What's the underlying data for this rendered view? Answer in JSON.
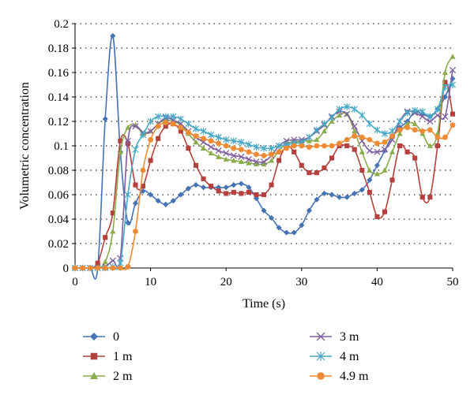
{
  "chart_data": {
    "type": "line",
    "title": "",
    "xlabel": "Time (s)",
    "ylabel": "Volumetric concentration",
    "xlim": [
      0,
      50
    ],
    "ylim": [
      0,
      0.2
    ],
    "xticks": [
      "0",
      "10",
      "20",
      "30",
      "40",
      "50"
    ],
    "yticks": [
      "0",
      "0.02",
      "0.04",
      "0.06",
      "0.08",
      "0.1",
      "0.12",
      "0.14",
      "0.16",
      "0.18",
      "0.2"
    ],
    "grid": "horizontal dotted",
    "legend_position": "bottom",
    "x": [
      0,
      1,
      2,
      3,
      4,
      5,
      6,
      7,
      8,
      9,
      10,
      11,
      12,
      13,
      14,
      15,
      16,
      17,
      18,
      19,
      20,
      21,
      22,
      23,
      24,
      25,
      26,
      27,
      28,
      29,
      30,
      31,
      32,
      33,
      34,
      35,
      36,
      37,
      38,
      39,
      40,
      41,
      42,
      43,
      44,
      45,
      46,
      47,
      48,
      49,
      50
    ],
    "series": [
      {
        "name": "0",
        "color": "#4673b4",
        "marker": "diamond",
        "values": [
          0,
          0,
          0,
          0,
          0.122,
          0.19,
          0.095,
          0.037,
          0.053,
          0.063,
          0.06,
          0.055,
          0.052,
          0.055,
          0.06,
          0.065,
          0.068,
          0.066,
          0.066,
          0.066,
          0.066,
          0.068,
          0.069,
          0.066,
          0.057,
          0.047,
          0.041,
          0.033,
          0.029,
          0.029,
          0.035,
          0.047,
          0.056,
          0.061,
          0.06,
          0.058,
          0.058,
          0.061,
          0.064,
          0.072,
          0.084,
          0.096,
          0.108,
          0.115,
          0.12,
          0.128,
          0.126,
          0.124,
          0.13,
          0.14,
          0.155
        ]
      },
      {
        "name": "1 m",
        "color": "#b5413e",
        "marker": "square",
        "values": [
          0,
          0,
          0,
          0.004,
          0.025,
          0.045,
          0.104,
          0.102,
          0.068,
          0.067,
          0.088,
          0.106,
          0.116,
          0.118,
          0.112,
          0.098,
          0.084,
          0.073,
          0.067,
          0.063,
          0.061,
          0.062,
          0.061,
          0.062,
          0.06,
          0.06,
          0.068,
          0.088,
          0.1,
          0.095,
          0.084,
          0.078,
          0.078,
          0.082,
          0.09,
          0.1,
          0.1,
          0.097,
          0.08,
          0.062,
          0.042,
          0.046,
          0.072,
          0.1,
          0.095,
          0.09,
          0.058,
          0.058,
          0.1,
          0.152,
          0.126
        ]
      },
      {
        "name": "2 m",
        "color": "#8aac4a",
        "marker": "triangle",
        "values": [
          0,
          0,
          0,
          0,
          0.005,
          0.03,
          0.095,
          0.115,
          0.117,
          0.11,
          0.112,
          0.118,
          0.121,
          0.12,
          0.117,
          0.11,
          0.103,
          0.098,
          0.094,
          0.091,
          0.089,
          0.088,
          0.087,
          0.086,
          0.085,
          0.085,
          0.088,
          0.096,
          0.102,
          0.103,
          0.104,
          0.104,
          0.105,
          0.112,
          0.12,
          0.125,
          0.126,
          0.112,
          0.095,
          0.08,
          0.077,
          0.08,
          0.095,
          0.11,
          0.118,
          0.118,
          0.11,
          0.1,
          0.11,
          0.16,
          0.173
        ]
      },
      {
        "name": "3 m",
        "color": "#7f5e9e",
        "marker": "x",
        "values": [
          0,
          0,
          0,
          0,
          0.001,
          0.006,
          0.008,
          0.104,
          0.116,
          0.111,
          0.112,
          0.118,
          0.123,
          0.121,
          0.118,
          0.112,
          0.107,
          0.103,
          0.099,
          0.096,
          0.094,
          0.092,
          0.091,
          0.089,
          0.087,
          0.087,
          0.092,
          0.1,
          0.104,
          0.105,
          0.105,
          0.107,
          0.112,
          0.117,
          0.124,
          0.128,
          0.126,
          0.116,
          0.104,
          0.096,
          0.095,
          0.097,
          0.105,
          0.12,
          0.128,
          0.127,
          0.124,
          0.12,
          0.125,
          0.124,
          0.162
        ]
      },
      {
        "name": "4 m",
        "color": "#47a9c6",
        "marker": "star",
        "values": [
          0,
          0,
          0,
          0,
          0,
          0.001,
          0.004,
          0.06,
          0.097,
          0.109,
          0.12,
          0.124,
          0.124,
          0.124,
          0.122,
          0.118,
          0.114,
          0.112,
          0.109,
          0.107,
          0.105,
          0.104,
          0.103,
          0.101,
          0.099,
          0.098,
          0.098,
          0.1,
          0.101,
          0.102,
          0.103,
          0.107,
          0.113,
          0.118,
          0.123,
          0.13,
          0.132,
          0.13,
          0.125,
          0.118,
          0.113,
          0.11,
          0.112,
          0.12,
          0.127,
          0.129,
          0.128,
          0.124,
          0.13,
          0.148,
          0.15
        ]
      },
      {
        "name": "4.9 m",
        "color": "#ef8b35",
        "marker": "circle",
        "values": [
          0,
          0,
          0,
          0,
          0,
          0,
          0,
          0.001,
          0.03,
          0.08,
          0.105,
          0.116,
          0.119,
          0.118,
          0.115,
          0.111,
          0.108,
          0.106,
          0.104,
          0.102,
          0.1,
          0.098,
          0.097,
          0.095,
          0.093,
          0.092,
          0.093,
          0.095,
          0.098,
          0.1,
          0.1,
          0.099,
          0.1,
          0.1,
          0.1,
          0.102,
          0.105,
          0.108,
          0.107,
          0.105,
          0.102,
          0.103,
          0.108,
          0.113,
          0.115,
          0.113,
          0.112,
          0.113,
          0.107,
          0.107,
          0.117
        ]
      }
    ]
  }
}
